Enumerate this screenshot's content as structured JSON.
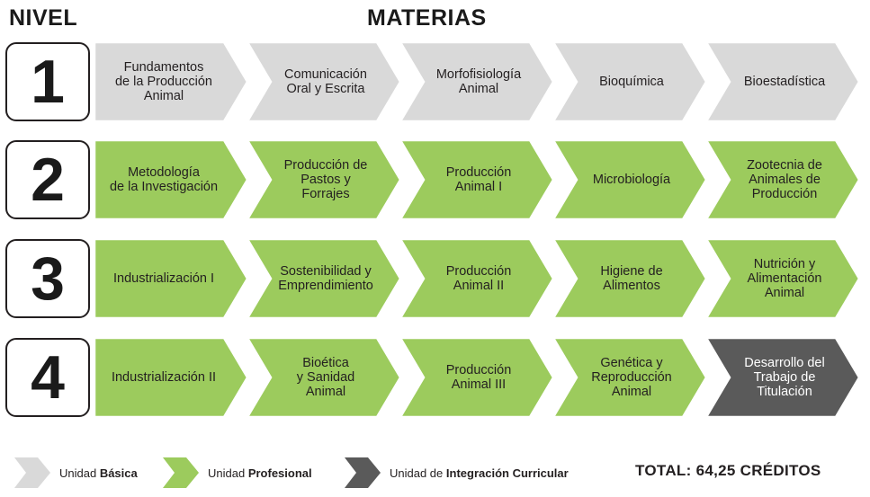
{
  "headers": {
    "nivel": "NIVEL",
    "materias": "MATERIAS"
  },
  "colors": {
    "basica": "#d9d9d9",
    "profesional": "#9ccb5d",
    "integracion": "#5a5a5a"
  },
  "rows": [
    {
      "nivel": "1",
      "materias": [
        {
          "text": "Fundamentos\nde la Producción\nAnimal",
          "unit": "basica"
        },
        {
          "text": "Comunicación\nOral y Escrita",
          "unit": "basica"
        },
        {
          "text": "Morfofisiología\nAnimal",
          "unit": "basica"
        },
        {
          "text": "Bioquímica",
          "unit": "basica"
        },
        {
          "text": "Bioestadística",
          "unit": "basica"
        }
      ]
    },
    {
      "nivel": "2",
      "materias": [
        {
          "text": "Metodología\nde la Investigación",
          "unit": "profesional"
        },
        {
          "text": "Producción de\nPastos y\nForrajes",
          "unit": "profesional"
        },
        {
          "text": "Producción\nAnimal I",
          "unit": "profesional"
        },
        {
          "text": "Microbiología",
          "unit": "profesional"
        },
        {
          "text": "Zootecnia de\nAnimales de\nProducción",
          "unit": "profesional"
        }
      ]
    },
    {
      "nivel": "3",
      "materias": [
        {
          "text": "Industrialización I",
          "unit": "profesional"
        },
        {
          "text": "Sostenibilidad y\nEmprendimiento",
          "unit": "profesional"
        },
        {
          "text": "Producción\nAnimal II",
          "unit": "profesional"
        },
        {
          "text": "Higiene de\nAlimentos",
          "unit": "profesional"
        },
        {
          "text": "Nutrición y\nAlimentación\nAnimal",
          "unit": "profesional"
        }
      ]
    },
    {
      "nivel": "4",
      "materias": [
        {
          "text": "Industrialización II",
          "unit": "profesional"
        },
        {
          "text": "Bioética\ny Sanidad\nAnimal",
          "unit": "profesional"
        },
        {
          "text": "Producción\nAnimal III",
          "unit": "profesional"
        },
        {
          "text": "Genética y\nReproducción\nAnimal",
          "unit": "profesional"
        },
        {
          "text": "Desarrollo del\nTrabajo de\nTitulación",
          "unit": "integracion"
        }
      ]
    }
  ],
  "legend": [
    {
      "unit": "basica",
      "prefix": "Unidad ",
      "bold": "Básica"
    },
    {
      "unit": "profesional",
      "prefix": "Unidad ",
      "bold": "Profesional"
    },
    {
      "unit": "integracion",
      "prefix": "Unidad de ",
      "bold": "Integración Curricular"
    }
  ],
  "total": "TOTAL: 64,25 CRÉDITOS"
}
